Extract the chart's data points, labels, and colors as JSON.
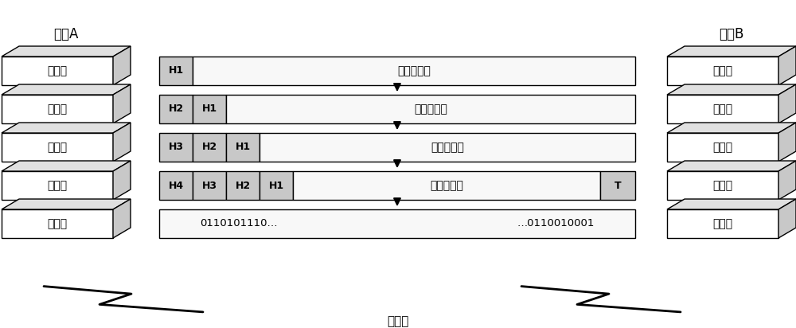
{
  "title_left": "主机A",
  "title_right": "主机B",
  "layers": [
    "应用层",
    "运输层",
    "内容层",
    "链路层",
    "物理层"
  ],
  "frame_rows": [
    {
      "headers": [
        "H1"
      ],
      "data": "应用层数据",
      "tail": false
    },
    {
      "headers": [
        "H2",
        "H1"
      ],
      "data": "应用层数据",
      "tail": false
    },
    {
      "headers": [
        "H3",
        "H2",
        "H1"
      ],
      "data": "应用层数据",
      "tail": false
    },
    {
      "headers": [
        "H4",
        "H3",
        "H2",
        "H1"
      ],
      "data": "应用层数据",
      "tail": true
    },
    {
      "headers": [],
      "data_left": "0110101110…",
      "data_right": "…0110010001",
      "tail": false
    }
  ],
  "em_wave_label": "电磁波",
  "bg_color": "#ffffff",
  "header_fill": "#c8c8c8",
  "data_fill": "#f0f0f0",
  "box_top_color": "#e0e0e0",
  "box_right_color": "#c8c8c8"
}
